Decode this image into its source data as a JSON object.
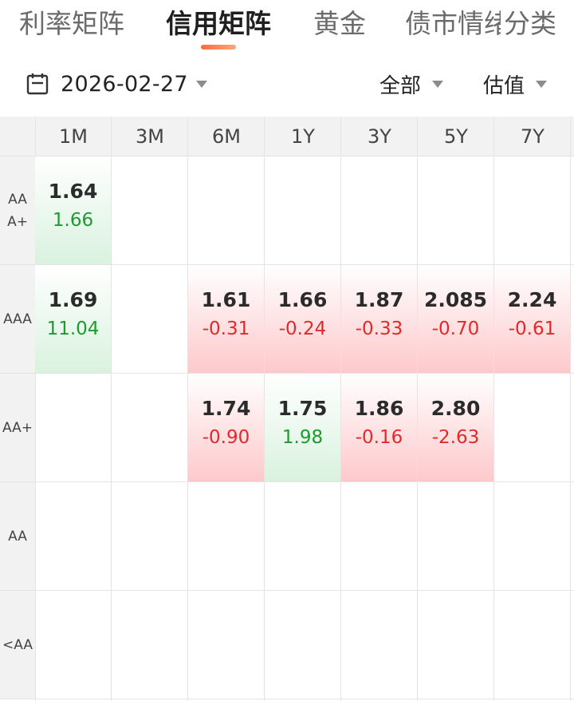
{
  "tabs": [
    {
      "label": "利率矩阵",
      "active": false
    },
    {
      "label": "信用矩阵",
      "active": true
    },
    {
      "label": "黄金",
      "active": false
    },
    {
      "label": "债市情绪",
      "active": false
    },
    {
      "label": "分类",
      "active": false
    }
  ],
  "filters": {
    "date": "2026-02-27",
    "scope": "全部",
    "metric": "估值"
  },
  "matrix": {
    "columns": [
      "1M",
      "3M",
      "6M",
      "1Y",
      "3Y",
      "5Y",
      "7Y"
    ],
    "rows": [
      {
        "rating": "AAA+",
        "cells": [
          {
            "value": "1.64",
            "change": "1.66",
            "tone": "green"
          },
          null,
          null,
          null,
          null,
          null,
          null
        ]
      },
      {
        "rating": "AAA",
        "cells": [
          {
            "value": "1.69",
            "change": "11.04",
            "tone": "green"
          },
          null,
          {
            "value": "1.61",
            "change": "-0.31",
            "tone": "red"
          },
          {
            "value": "1.66",
            "change": "-0.24",
            "tone": "red"
          },
          {
            "value": "1.87",
            "change": "-0.33",
            "tone": "red"
          },
          {
            "value": "2.085",
            "change": "-0.70",
            "tone": "red"
          },
          {
            "value": "2.24",
            "change": "-0.61",
            "tone": "red"
          }
        ]
      },
      {
        "rating": "AA+",
        "cells": [
          null,
          null,
          {
            "value": "1.74",
            "change": "-0.90",
            "tone": "red"
          },
          {
            "value": "1.75",
            "change": "1.98",
            "tone": "green"
          },
          {
            "value": "1.86",
            "change": "-0.16",
            "tone": "red"
          },
          {
            "value": "2.80",
            "change": "-2.63",
            "tone": "red"
          },
          null
        ]
      },
      {
        "rating": "AA",
        "cells": [
          null,
          null,
          null,
          null,
          null,
          null,
          null
        ]
      },
      {
        "rating": "<AA",
        "cells": [
          null,
          null,
          null,
          null,
          null,
          null,
          null
        ]
      }
    ]
  },
  "colors": {
    "accent": "#ff6a3c",
    "up": "#1f9a2f",
    "down": "#e02a2a",
    "green_bg": "#d9f2df",
    "red_bg": "#fdc9cb"
  }
}
